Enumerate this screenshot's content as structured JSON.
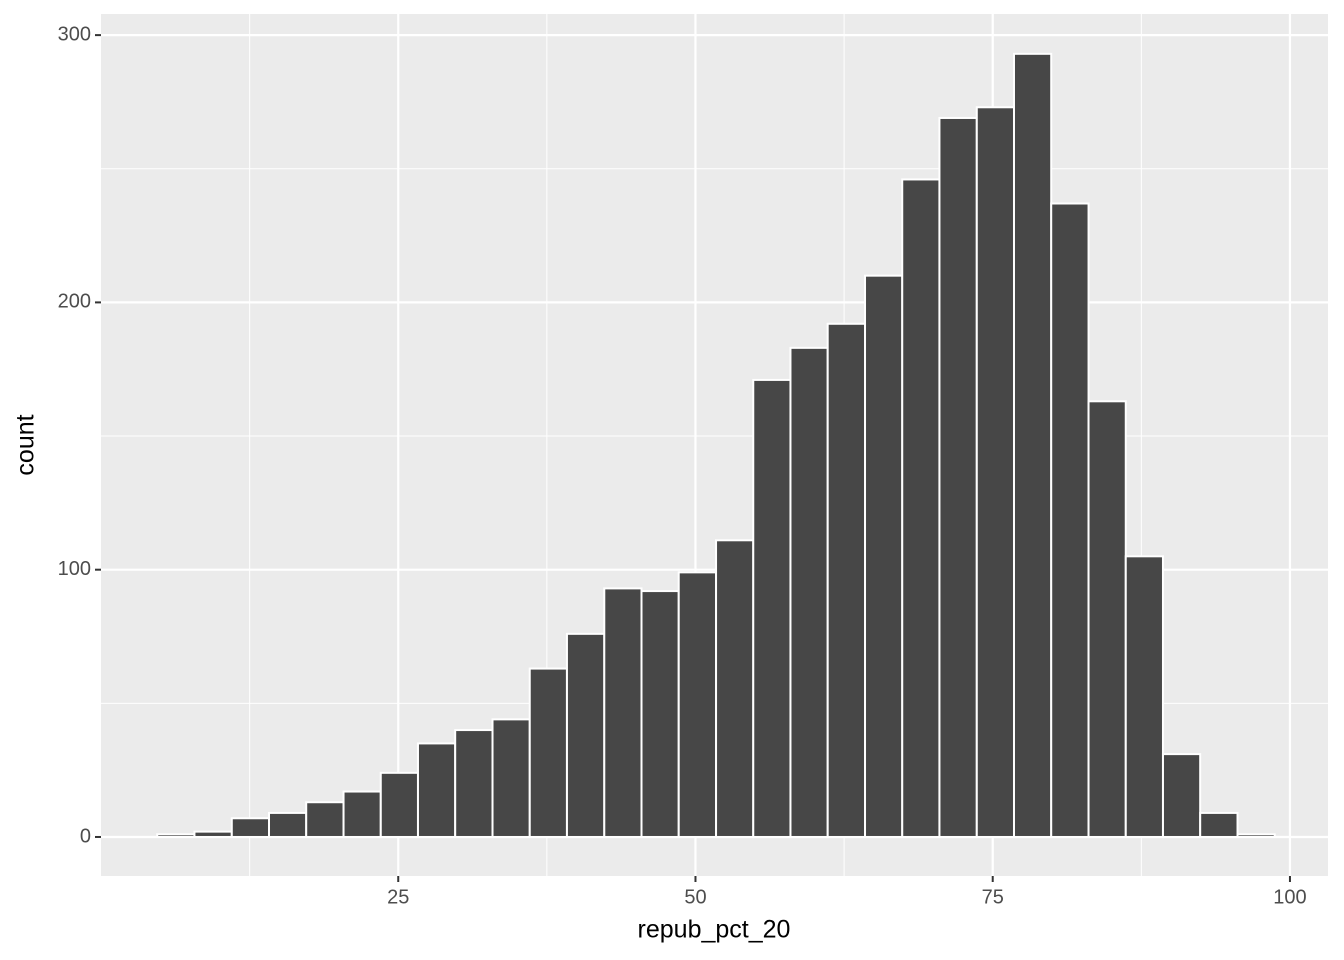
{
  "chart_data": {
    "type": "histogram",
    "x_label": "repub_pct_20",
    "y_label": "count",
    "bins": [
      4.73,
      7.86,
      11.0,
      14.13,
      17.26,
      20.4,
      23.53,
      26.66,
      29.79,
      32.93,
      36.06,
      39.19,
      42.33,
      45.46,
      48.59,
      51.73,
      54.86,
      57.99,
      61.12,
      64.26,
      67.39,
      70.52,
      73.66,
      76.79,
      79.92,
      83.06,
      86.19,
      89.32,
      92.45,
      95.59,
      98.72
    ],
    "counts": [
      1,
      2,
      7,
      9,
      13,
      17,
      24,
      35,
      40,
      44,
      63,
      76,
      93,
      92,
      99,
      111,
      171,
      183,
      192,
      210,
      246,
      269,
      273,
      293,
      237,
      163,
      105,
      31,
      9,
      1
    ],
    "color": "#474747",
    "xlim": [
      0.0,
      103.2
    ],
    "ylim": [
      -14.6,
      307.9
    ],
    "xticks": [
      25,
      50,
      75,
      100
    ],
    "yticks": [
      0,
      100,
      200,
      300
    ],
    "x_minor_ticks": [
      12.5,
      37.5,
      62.5,
      87.5
    ],
    "y_minor_ticks": [
      50,
      150,
      250
    ],
    "grid": true
  }
}
